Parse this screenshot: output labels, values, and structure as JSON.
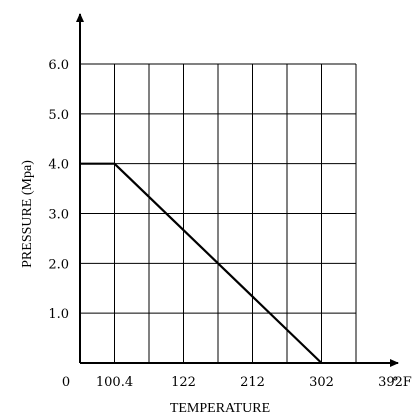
{
  "chart_data": {
    "type": "line",
    "xlabel": "TEMPERATURE",
    "ylabel": "PRESSURE (Mpa)",
    "x_unit": "° F",
    "origin_label": "0",
    "x_tick_labels": [
      "100.4",
      "122",
      "212",
      "302",
      "392"
    ],
    "y_tick_labels": [
      "1.0",
      "2.0",
      "3.0",
      "4.0",
      "5.0",
      "6.0"
    ],
    "ylim": [
      0,
      6.0
    ],
    "grid": true,
    "series": [
      {
        "points": [
          {
            "x": "0",
            "y": 4.0
          },
          {
            "x": "100.4",
            "y": 4.0
          },
          {
            "x": "302",
            "y": 0
          }
        ]
      }
    ]
  }
}
